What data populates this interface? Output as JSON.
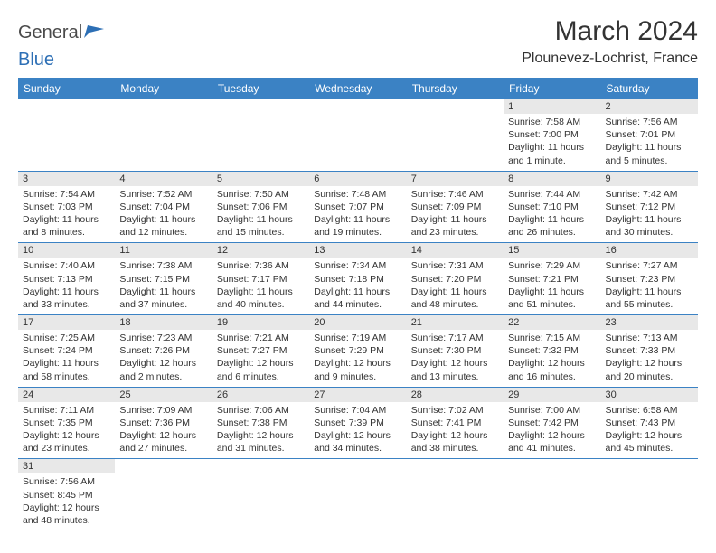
{
  "brand": {
    "name_a": "General",
    "name_b": "Blue"
  },
  "title": "March 2024",
  "location": "Plounevez-Lochrist, France",
  "colors": {
    "header_bg": "#3b82c4",
    "header_fg": "#ffffff",
    "daynum_bg": "#e8e8e8",
    "row_border": "#3b82c4",
    "text": "#333333",
    "brand_gray": "#4a4a4a",
    "brand_blue": "#2d6fb5"
  },
  "weekdays": [
    "Sunday",
    "Monday",
    "Tuesday",
    "Wednesday",
    "Thursday",
    "Friday",
    "Saturday"
  ],
  "weeks": [
    [
      null,
      null,
      null,
      null,
      null,
      {
        "n": "1",
        "sr": "7:58 AM",
        "ss": "7:00 PM",
        "dl": "11 hours and 1 minute."
      },
      {
        "n": "2",
        "sr": "7:56 AM",
        "ss": "7:01 PM",
        "dl": "11 hours and 5 minutes."
      }
    ],
    [
      {
        "n": "3",
        "sr": "7:54 AM",
        "ss": "7:03 PM",
        "dl": "11 hours and 8 minutes."
      },
      {
        "n": "4",
        "sr": "7:52 AM",
        "ss": "7:04 PM",
        "dl": "11 hours and 12 minutes."
      },
      {
        "n": "5",
        "sr": "7:50 AM",
        "ss": "7:06 PM",
        "dl": "11 hours and 15 minutes."
      },
      {
        "n": "6",
        "sr": "7:48 AM",
        "ss": "7:07 PM",
        "dl": "11 hours and 19 minutes."
      },
      {
        "n": "7",
        "sr": "7:46 AM",
        "ss": "7:09 PM",
        "dl": "11 hours and 23 minutes."
      },
      {
        "n": "8",
        "sr": "7:44 AM",
        "ss": "7:10 PM",
        "dl": "11 hours and 26 minutes."
      },
      {
        "n": "9",
        "sr": "7:42 AM",
        "ss": "7:12 PM",
        "dl": "11 hours and 30 minutes."
      }
    ],
    [
      {
        "n": "10",
        "sr": "7:40 AM",
        "ss": "7:13 PM",
        "dl": "11 hours and 33 minutes."
      },
      {
        "n": "11",
        "sr": "7:38 AM",
        "ss": "7:15 PM",
        "dl": "11 hours and 37 minutes."
      },
      {
        "n": "12",
        "sr": "7:36 AM",
        "ss": "7:17 PM",
        "dl": "11 hours and 40 minutes."
      },
      {
        "n": "13",
        "sr": "7:34 AM",
        "ss": "7:18 PM",
        "dl": "11 hours and 44 minutes."
      },
      {
        "n": "14",
        "sr": "7:31 AM",
        "ss": "7:20 PM",
        "dl": "11 hours and 48 minutes."
      },
      {
        "n": "15",
        "sr": "7:29 AM",
        "ss": "7:21 PM",
        "dl": "11 hours and 51 minutes."
      },
      {
        "n": "16",
        "sr": "7:27 AM",
        "ss": "7:23 PM",
        "dl": "11 hours and 55 minutes."
      }
    ],
    [
      {
        "n": "17",
        "sr": "7:25 AM",
        "ss": "7:24 PM",
        "dl": "11 hours and 58 minutes."
      },
      {
        "n": "18",
        "sr": "7:23 AM",
        "ss": "7:26 PM",
        "dl": "12 hours and 2 minutes."
      },
      {
        "n": "19",
        "sr": "7:21 AM",
        "ss": "7:27 PM",
        "dl": "12 hours and 6 minutes."
      },
      {
        "n": "20",
        "sr": "7:19 AM",
        "ss": "7:29 PM",
        "dl": "12 hours and 9 minutes."
      },
      {
        "n": "21",
        "sr": "7:17 AM",
        "ss": "7:30 PM",
        "dl": "12 hours and 13 minutes."
      },
      {
        "n": "22",
        "sr": "7:15 AM",
        "ss": "7:32 PM",
        "dl": "12 hours and 16 minutes."
      },
      {
        "n": "23",
        "sr": "7:13 AM",
        "ss": "7:33 PM",
        "dl": "12 hours and 20 minutes."
      }
    ],
    [
      {
        "n": "24",
        "sr": "7:11 AM",
        "ss": "7:35 PM",
        "dl": "12 hours and 23 minutes."
      },
      {
        "n": "25",
        "sr": "7:09 AM",
        "ss": "7:36 PM",
        "dl": "12 hours and 27 minutes."
      },
      {
        "n": "26",
        "sr": "7:06 AM",
        "ss": "7:38 PM",
        "dl": "12 hours and 31 minutes."
      },
      {
        "n": "27",
        "sr": "7:04 AM",
        "ss": "7:39 PM",
        "dl": "12 hours and 34 minutes."
      },
      {
        "n": "28",
        "sr": "7:02 AM",
        "ss": "7:41 PM",
        "dl": "12 hours and 38 minutes."
      },
      {
        "n": "29",
        "sr": "7:00 AM",
        "ss": "7:42 PM",
        "dl": "12 hours and 41 minutes."
      },
      {
        "n": "30",
        "sr": "6:58 AM",
        "ss": "7:43 PM",
        "dl": "12 hours and 45 minutes."
      }
    ],
    [
      {
        "n": "31",
        "sr": "7:56 AM",
        "ss": "8:45 PM",
        "dl": "12 hours and 48 minutes."
      },
      null,
      null,
      null,
      null,
      null,
      null
    ]
  ],
  "labels": {
    "sunrise": "Sunrise:",
    "sunset": "Sunset:",
    "daylight": "Daylight:"
  }
}
